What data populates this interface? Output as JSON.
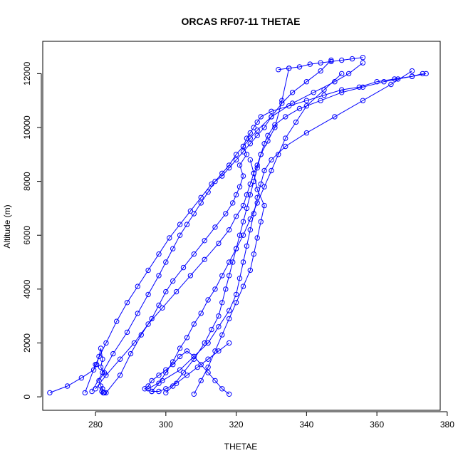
{
  "chart_data": {
    "type": "scatter",
    "title": "ORCAS RF07-11 THETAE",
    "xlabel": "THETAE",
    "ylabel": "Altitude (m)",
    "xlim": [
      265,
      378
    ],
    "ylim": [
      -500,
      13200
    ],
    "xticks": [
      "280",
      "300",
      "320",
      "340",
      "360",
      "380"
    ],
    "yticks": [
      "0",
      "2000",
      "4000",
      "6000",
      "8000",
      "10000",
      "12000"
    ],
    "grid": false,
    "legend": "none",
    "marker": "open-circle",
    "color": "#0000ff",
    "series": [
      {
        "x": [
          267,
          272,
          276,
          279.5,
          280.3,
          281,
          281.5,
          282,
          281.5,
          282.5,
          281,
          281.5,
          282,
          281.8,
          282.3,
          282.5,
          282.2
        ],
        "y": [
          150,
          400,
          700,
          1000,
          1200,
          1500,
          1800,
          1400,
          1100,
          900,
          600,
          400,
          300,
          200,
          150,
          150,
          150
        ]
      },
      {
        "x": [
          283,
          287,
          290,
          293,
          296,
          298,
          300,
          302,
          305,
          308,
          311,
          314,
          317,
          319,
          320,
          321,
          322,
          321,
          323,
          322,
          323,
          324,
          325,
          326,
          327,
          330,
          335,
          340,
          345,
          350,
          355,
          360,
          365,
          370,
          373
        ],
        "y": [
          150,
          800,
          1600,
          2300,
          2900,
          3400,
          3900,
          4300,
          4800,
          5300,
          5800,
          6300,
          6800,
          7200,
          7500,
          7800,
          8200,
          8600,
          9000,
          9300,
          9600,
          9800,
          10000,
          10200,
          10400,
          10600,
          10800,
          11000,
          11200,
          11400,
          11500,
          11700,
          11800,
          11900,
          12000
        ]
      },
      {
        "x": [
          277,
          280,
          283,
          286,
          289,
          292,
          295,
          298,
          301,
          304,
          307,
          310,
          313,
          316,
          318,
          320,
          322,
          324,
          326,
          328,
          330,
          333,
          336,
          340,
          344,
          347
        ],
        "y": [
          150,
          1200,
          2000,
          2800,
          3500,
          4100,
          4700,
          5300,
          5900,
          6400,
          6900,
          7400,
          7900,
          8200,
          8500,
          8800,
          9100,
          9400,
          9700,
          10000,
          10400,
          10900,
          11300,
          11700,
          12100,
          12500
        ]
      },
      {
        "x": [
          279,
          282,
          285,
          289,
          292,
          295,
          298,
          300,
          302,
          304,
          306,
          308,
          310,
          312,
          314,
          316,
          318,
          320,
          322,
          324,
          326,
          330,
          336,
          342,
          348,
          352,
          356
        ],
        "y": [
          200,
          900,
          1600,
          2400,
          3100,
          3800,
          4500,
          5000,
          5500,
          6000,
          6400,
          6800,
          7200,
          7600,
          8000,
          8300,
          8600,
          9000,
          9300,
          9600,
          9900,
          10400,
          10900,
          11300,
          11700,
          12000,
          12400
        ]
      },
      {
        "x": [
          295,
          299,
          304,
          308,
          312,
          315,
          318,
          320,
          321,
          322,
          323,
          324,
          325,
          326,
          327,
          328,
          330,
          334,
          340,
          348,
          356,
          364,
          370
        ],
        "y": [
          300,
          600,
          1000,
          1500,
          2000,
          2600,
          3200,
          3800,
          4400,
          5000,
          5600,
          6200,
          6800,
          7400,
          7900,
          8400,
          8800,
          9300,
          9800,
          10400,
          11000,
          11600,
          12100
        ]
      },
      {
        "x": [
          296,
          298,
          300,
          302,
          304,
          306,
          308,
          310,
          312,
          314,
          316,
          318,
          320,
          322,
          324,
          326,
          328,
          330,
          332,
          334,
          337,
          340,
          345,
          350
        ],
        "y": [
          200,
          500,
          900,
          1300,
          1800,
          2200,
          2700,
          3100,
          3600,
          4000,
          4500,
          5000,
          5500,
          6000,
          6600,
          7200,
          7800,
          8400,
          9000,
          9600,
          10200,
          10800,
          11400,
          12000
        ]
      },
      {
        "x": [
          300,
          302,
          305,
          308,
          311,
          313,
          315,
          316,
          317,
          318,
          319,
          320,
          321,
          322,
          323,
          324,
          325,
          326,
          327,
          329,
          331,
          333,
          335
        ],
        "y": [
          150,
          400,
          900,
          1400,
          2000,
          2500,
          3000,
          3500,
          4000,
          4500,
          5000,
          5500,
          6000,
          6500,
          7000,
          7500,
          8000,
          8500,
          9000,
          9500,
          10000,
          11000,
          12200
        ]
      },
      {
        "x": [
          308,
          310,
          312,
          314,
          316,
          318,
          320,
          322,
          324,
          325,
          326,
          327,
          328,
          326,
          325,
          324
        ],
        "y": [
          100,
          600,
          1100,
          1700,
          2300,
          2900,
          3500,
          4100,
          4700,
          5300,
          5900,
          6500,
          7100,
          7700,
          8300,
          8800
        ]
      },
      {
        "x": [
          318,
          316,
          314,
          312,
          310,
          308,
          306,
          304,
          302,
          300,
          298,
          296,
          295,
          294,
          296,
          298,
          300,
          303,
          306,
          309,
          312,
          315,
          318
        ],
        "y": [
          100,
          300,
          600,
          900,
          1200,
          1500,
          1700,
          1500,
          1200,
          1000,
          800,
          600,
          400,
          300,
          200,
          200,
          300,
          500,
          800,
          1100,
          1400,
          1700,
          2000
        ]
      },
      {
        "x": [
          280,
          283,
          287,
          291,
          295,
          299,
          303,
          307,
          311,
          315,
          318,
          320,
          322,
          323,
          324,
          325,
          326,
          327,
          328,
          329,
          331,
          334,
          338,
          344,
          350,
          356,
          362,
          366,
          370,
          374
        ],
        "y": [
          300,
          800,
          1400,
          2000,
          2700,
          3300,
          3900,
          4500,
          5100,
          5700,
          6200,
          6700,
          7100,
          7500,
          7900,
          8300,
          8600,
          9000,
          9400,
          9700,
          10100,
          10400,
          10700,
          11000,
          11300,
          11500,
          11700,
          11800,
          11900,
          12000
        ]
      },
      {
        "x": [
          332,
          335,
          338,
          341,
          344,
          347,
          350,
          353,
          356
        ],
        "y": [
          12150,
          12200,
          12250,
          12350,
          12400,
          12450,
          12500,
          12550,
          12600
        ]
      }
    ]
  }
}
